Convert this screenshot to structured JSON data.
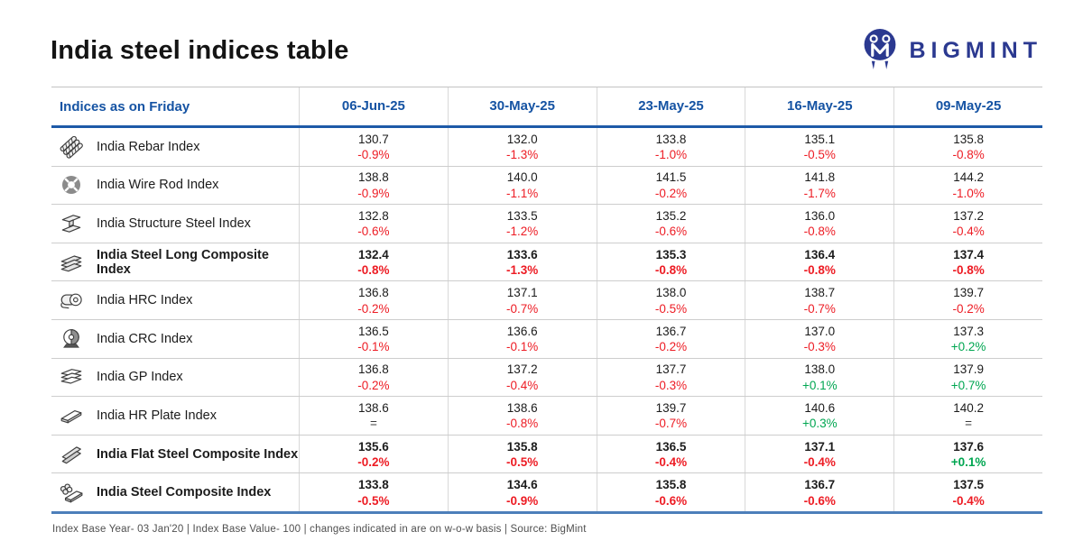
{
  "header": {
    "title": "India steel indices table",
    "brand": "BIGMINT"
  },
  "colors": {
    "brand_navy": "#2b3990",
    "header_blue": "#1553a3",
    "rule_blue": "#1d5aa8",
    "bottom_blue": "#4d7fba",
    "negative": "#ed1c24",
    "positive": "#00a651"
  },
  "footer": {
    "text": "Index Base Year- 03 Jan'20 | Index Base Value- 100 | changes indicated in are on w-o-w basis | Source: BigMint"
  },
  "chart_data": {
    "type": "table",
    "title": "India steel indices table",
    "label_header": "Indices as on Friday",
    "columns": [
      "06-Jun-25",
      "30-May-25",
      "23-May-25",
      "16-May-25",
      "09-May-25"
    ],
    "rows": [
      {
        "name": "India Rebar Index",
        "icon": "rebar-bundle-icon",
        "bold": false,
        "cells": [
          {
            "value": "130.7",
            "change": "-0.9%"
          },
          {
            "value": "132.0",
            "change": "-1.3%"
          },
          {
            "value": "133.8",
            "change": "-1.0%"
          },
          {
            "value": "135.1",
            "change": "-0.5%"
          },
          {
            "value": "135.8",
            "change": "-0.8%"
          }
        ]
      },
      {
        "name": "India Wire Rod Index",
        "icon": "wire-rod-coil-icon",
        "bold": false,
        "cells": [
          {
            "value": "138.8",
            "change": "-0.9%"
          },
          {
            "value": "140.0",
            "change": "-1.1%"
          },
          {
            "value": "141.5",
            "change": "-0.2%"
          },
          {
            "value": "141.8",
            "change": "-1.7%"
          },
          {
            "value": "144.2",
            "change": "-1.0%"
          }
        ]
      },
      {
        "name": "India Structure Steel Index",
        "icon": "structure-steel-icon",
        "bold": false,
        "cells": [
          {
            "value": "132.8",
            "change": "-0.6%"
          },
          {
            "value": "133.5",
            "change": "-1.2%"
          },
          {
            "value": "135.2",
            "change": "-0.6%"
          },
          {
            "value": "136.0",
            "change": "-0.8%"
          },
          {
            "value": "137.2",
            "change": "-0.4%"
          }
        ]
      },
      {
        "name": "India Steel Long Composite Index",
        "icon": "long-steel-stack-icon",
        "bold": true,
        "cells": [
          {
            "value": "132.4",
            "change": "-0.8%"
          },
          {
            "value": "133.6",
            "change": "-1.3%"
          },
          {
            "value": "135.3",
            "change": "-0.8%"
          },
          {
            "value": "136.4",
            "change": "-0.8%"
          },
          {
            "value": "137.4",
            "change": "-0.8%"
          }
        ]
      },
      {
        "name": "India HRC Index",
        "icon": "hrc-coil-icon",
        "bold": false,
        "cells": [
          {
            "value": "136.8",
            "change": "-0.2%"
          },
          {
            "value": "137.1",
            "change": "-0.7%"
          },
          {
            "value": "138.0",
            "change": "-0.5%"
          },
          {
            "value": "138.7",
            "change": "-0.7%"
          },
          {
            "value": "139.7",
            "change": "-0.2%"
          }
        ]
      },
      {
        "name": "India CRC Index",
        "icon": "crc-coil-icon",
        "bold": false,
        "cells": [
          {
            "value": "136.5",
            "change": "-0.1%"
          },
          {
            "value": "136.6",
            "change": "-0.1%"
          },
          {
            "value": "136.7",
            "change": "-0.2%"
          },
          {
            "value": "137.0",
            "change": "-0.3%"
          },
          {
            "value": "137.3",
            "change": "+0.2%"
          }
        ]
      },
      {
        "name": "India GP Index",
        "icon": "gp-sheets-icon",
        "bold": false,
        "cells": [
          {
            "value": "136.8",
            "change": "-0.2%"
          },
          {
            "value": "137.2",
            "change": "-0.4%"
          },
          {
            "value": "137.7",
            "change": "-0.3%"
          },
          {
            "value": "138.0",
            "change": "+0.1%"
          },
          {
            "value": "137.9",
            "change": "+0.7%"
          }
        ]
      },
      {
        "name": "India HR Plate Index",
        "icon": "hr-plate-icon",
        "bold": false,
        "cells": [
          {
            "value": "138.6",
            "change": "="
          },
          {
            "value": "138.6",
            "change": "-0.8%"
          },
          {
            "value": "139.7",
            "change": "-0.7%"
          },
          {
            "value": "140.6",
            "change": "+0.3%"
          },
          {
            "value": "140.2",
            "change": "="
          }
        ]
      },
      {
        "name": "India Flat Steel Composite Index",
        "icon": "flat-steel-stack-icon",
        "bold": true,
        "cells": [
          {
            "value": "135.6",
            "change": "-0.2%"
          },
          {
            "value": "135.8",
            "change": "-0.5%"
          },
          {
            "value": "136.5",
            "change": "-0.4%"
          },
          {
            "value": "137.1",
            "change": "-0.4%"
          },
          {
            "value": "137.6",
            "change": "+0.1%"
          }
        ]
      },
      {
        "name": "India Steel Composite Index",
        "icon": "composite-steel-icon",
        "bold": true,
        "cells": [
          {
            "value": "133.8",
            "change": "-0.5%"
          },
          {
            "value": "134.6",
            "change": "-0.9%"
          },
          {
            "value": "135.8",
            "change": "-0.6%"
          },
          {
            "value": "136.7",
            "change": "-0.6%"
          },
          {
            "value": "137.5",
            "change": "-0.4%"
          }
        ]
      }
    ]
  }
}
